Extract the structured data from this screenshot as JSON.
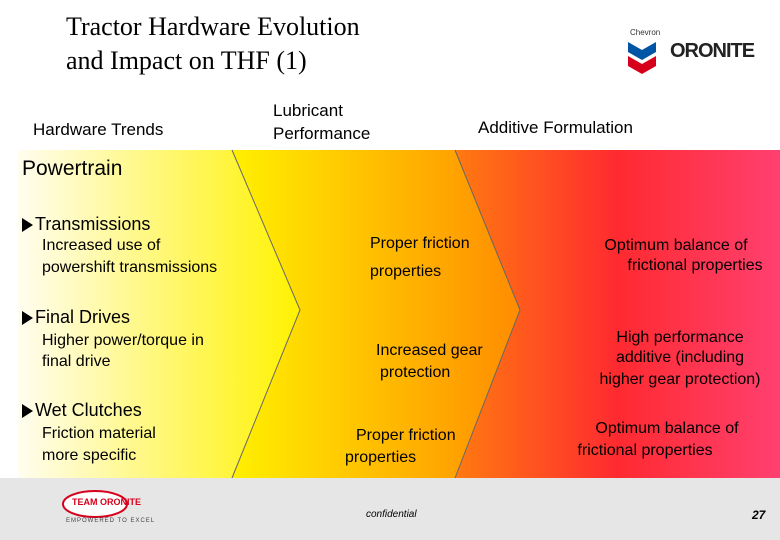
{
  "header": {
    "title_lines": [
      "Tractor Hardware Evolution",
      "and Impact on THF (1)"
    ],
    "logo": {
      "brand": "Chevron",
      "name": "ORONITE"
    }
  },
  "columns": [
    [
      "Hardware Trends"
    ],
    [
      "Lubricant",
      "Performance"
    ],
    [
      "Additive Formulation"
    ]
  ],
  "section": "Powertrain",
  "rows": [
    {
      "heading": "Transmissions",
      "hardware": [
        "Increased use of",
        "powershift transmissions"
      ],
      "lubricant": [
        "Proper friction",
        "properties"
      ],
      "additive": [
        "Optimum balance of",
        "frictional properties"
      ]
    },
    {
      "heading": "Final Drives",
      "hardware": [
        "Higher power/torque in",
        "final drive"
      ],
      "lubricant": [
        "Increased gear",
        "protection"
      ],
      "additive": [
        "High performance",
        "additive (including",
        "higher gear protection)"
      ]
    },
    {
      "heading": "Wet Clutches",
      "hardware": [
        "Friction material",
        "more specific"
      ],
      "lubricant": [
        "Proper friction",
        "properties"
      ],
      "additive": [
        "Optimum balance of",
        "frictional properties"
      ]
    }
  ],
  "footer": {
    "logo": {
      "name": "TEAM ORONITE",
      "tagline": "EMPOWERED TO EXCEL"
    },
    "note": "confidential",
    "page": 27
  }
}
